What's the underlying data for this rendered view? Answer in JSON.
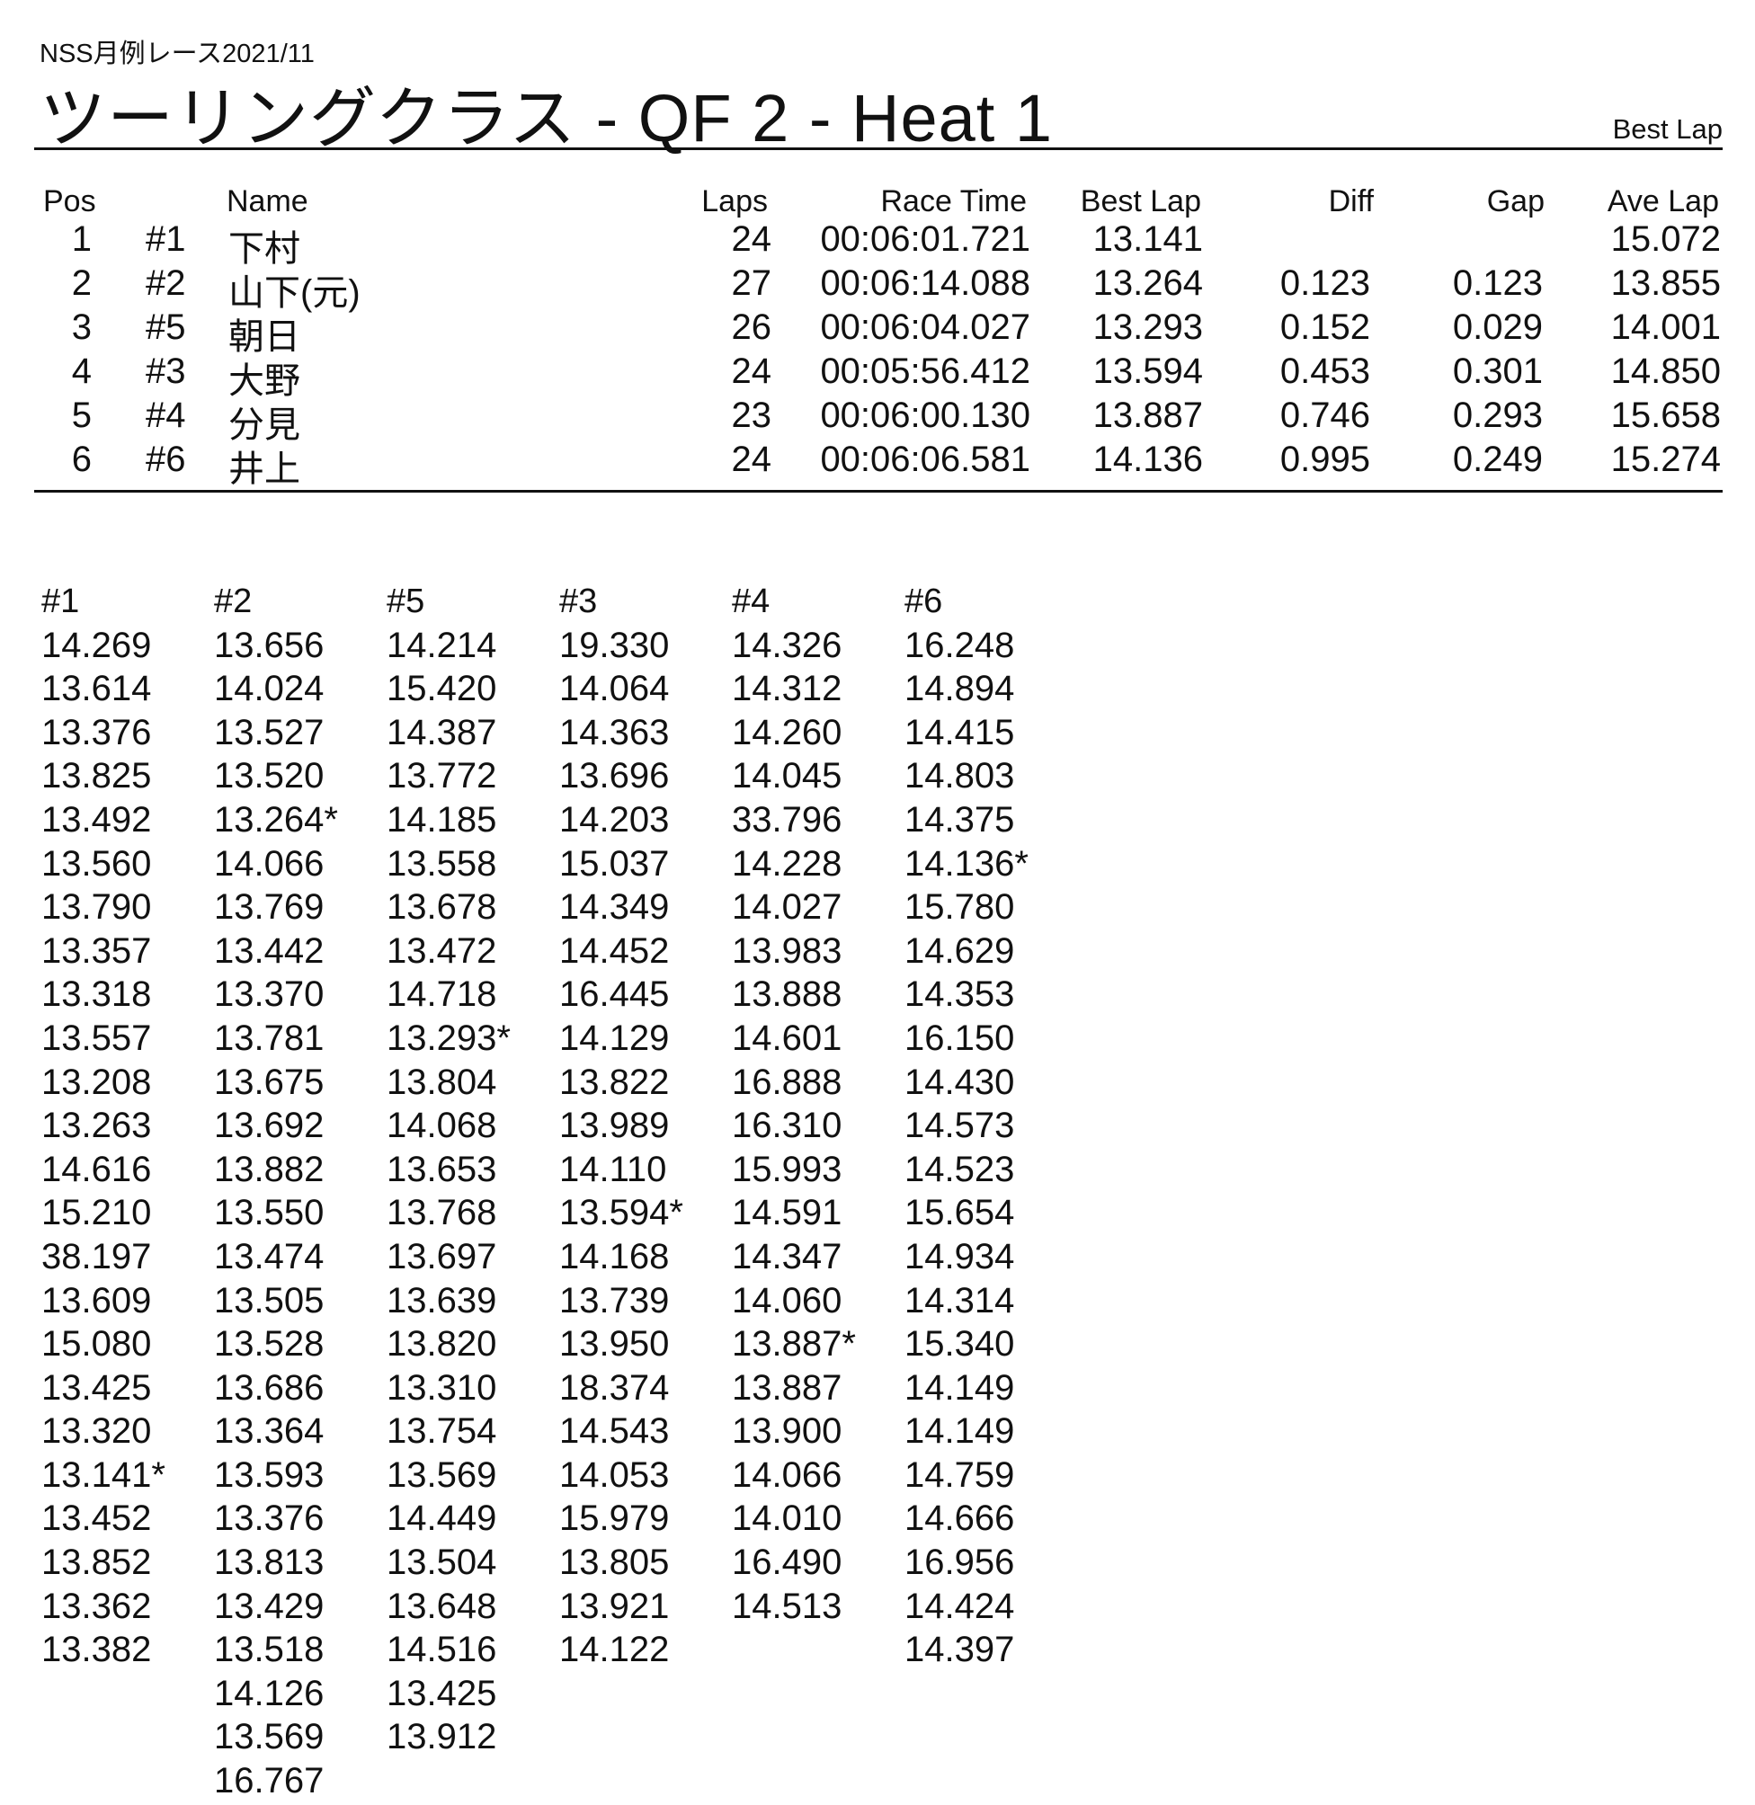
{
  "header": {
    "event": "NSS月例レース2021/11",
    "title": "ツーリングクラス  -  QF 2  -  Heat 1",
    "sort_label": "Best Lap"
  },
  "results": {
    "columns": {
      "pos": "Pos",
      "name": "Name",
      "laps": "Laps",
      "race_time": "Race Time",
      "best_lap": "Best Lap",
      "diff": "Diff",
      "gap": "Gap",
      "ave_lap": "Ave Lap"
    },
    "rows": [
      {
        "pos": "1",
        "num": "#1",
        "name": "下村",
        "laps": "24",
        "race_time": "00:06:01.721",
        "best_lap": "13.141",
        "diff": "",
        "gap": "",
        "ave_lap": "15.072"
      },
      {
        "pos": "2",
        "num": "#2",
        "name": "山下(元)",
        "laps": "27",
        "race_time": "00:06:14.088",
        "best_lap": "13.264",
        "diff": "0.123",
        "gap": "0.123",
        "ave_lap": "13.855"
      },
      {
        "pos": "3",
        "num": "#5",
        "name": "朝日",
        "laps": "26",
        "race_time": "00:06:04.027",
        "best_lap": "13.293",
        "diff": "0.152",
        "gap": "0.029",
        "ave_lap": "14.001"
      },
      {
        "pos": "4",
        "num": "#3",
        "name": "大野",
        "laps": "24",
        "race_time": "00:05:56.412",
        "best_lap": "13.594",
        "diff": "0.453",
        "gap": "0.301",
        "ave_lap": "14.850"
      },
      {
        "pos": "5",
        "num": "#4",
        "name": "分見",
        "laps": "23",
        "race_time": "00:06:00.130",
        "best_lap": "13.887",
        "diff": "0.746",
        "gap": "0.293",
        "ave_lap": "15.658"
      },
      {
        "pos": "6",
        "num": "#6",
        "name": "井上",
        "laps": "24",
        "race_time": "00:06:06.581",
        "best_lap": "14.136",
        "diff": "0.995",
        "gap": "0.249",
        "ave_lap": "15.274"
      }
    ]
  },
  "lap_times": [
    {
      "car": "#1",
      "laps": [
        "14.269",
        "13.614",
        "13.376",
        "13.825",
        "13.492",
        "13.560",
        "13.790",
        "13.357",
        "13.318",
        "13.557",
        "13.208",
        "13.263",
        "14.616",
        "15.210",
        "38.197",
        "13.609",
        "15.080",
        "13.425",
        "13.320",
        "13.141*",
        "13.452",
        "13.852",
        "13.362",
        "13.382"
      ]
    },
    {
      "car": "#2",
      "laps": [
        "13.656",
        "14.024",
        "13.527",
        "13.520",
        "13.264*",
        "14.066",
        "13.769",
        "13.442",
        "13.370",
        "13.781",
        "13.675",
        "13.692",
        "13.882",
        "13.550",
        "13.474",
        "13.505",
        "13.528",
        "13.686",
        "13.364",
        "13.593",
        "13.376",
        "13.813",
        "13.429",
        "13.518",
        "14.126",
        "13.569",
        "16.767"
      ]
    },
    {
      "car": "#5",
      "laps": [
        "14.214",
        "15.420",
        "14.387",
        "13.772",
        "14.185",
        "13.558",
        "13.678",
        "13.472",
        "14.718",
        "13.293*",
        "13.804",
        "14.068",
        "13.653",
        "13.768",
        "13.697",
        "13.639",
        "13.820",
        "13.310",
        "13.754",
        "13.569",
        "14.449",
        "13.504",
        "13.648",
        "14.516",
        "13.425",
        "13.912"
      ]
    },
    {
      "car": "#3",
      "laps": [
        "19.330",
        "14.064",
        "14.363",
        "13.696",
        "14.203",
        "15.037",
        "14.349",
        "14.452",
        "16.445",
        "14.129",
        "13.822",
        "13.989",
        "14.110",
        "13.594*",
        "14.168",
        "13.739",
        "13.950",
        "18.374",
        "14.543",
        "14.053",
        "15.979",
        "13.805",
        "13.921",
        "14.122"
      ]
    },
    {
      "car": "#4",
      "laps": [
        "14.326",
        "14.312",
        "14.260",
        "14.045",
        "33.796",
        "14.228",
        "14.027",
        "13.983",
        "13.888",
        "14.601",
        "16.888",
        "16.310",
        "15.993",
        "14.591",
        "14.347",
        "14.060",
        "13.887*",
        "13.887",
        "13.900",
        "14.066",
        "14.010",
        "16.490",
        "14.513"
      ]
    },
    {
      "car": "#6",
      "laps": [
        "16.248",
        "14.894",
        "14.415",
        "14.803",
        "14.375",
        "14.136*",
        "15.780",
        "14.629",
        "14.353",
        "16.150",
        "14.430",
        "14.573",
        "14.523",
        "15.654",
        "14.934",
        "14.314",
        "15.340",
        "14.149",
        "14.149",
        "14.759",
        "14.666",
        "16.956",
        "14.424",
        "14.397"
      ]
    }
  ]
}
